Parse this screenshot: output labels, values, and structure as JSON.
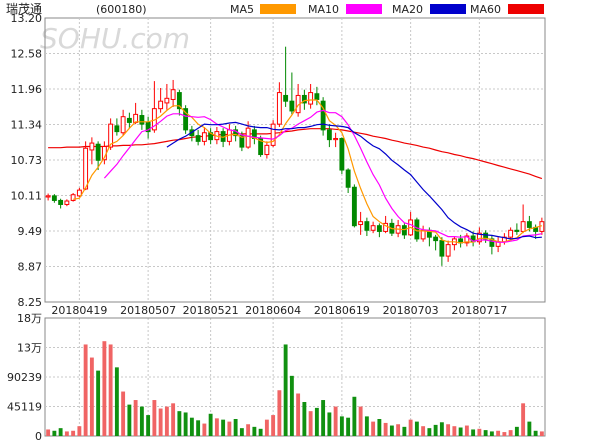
{
  "chart_data": {
    "type": "candlestick",
    "title": "瑞茂通",
    "code": "(600180)",
    "watermark": "SOHU.com",
    "ma_legend": [
      {
        "name": "MA5",
        "color": "#ff9900"
      },
      {
        "name": "MA10",
        "color": "#ff00ff"
      },
      {
        "name": "MA20",
        "color": "#0000cc"
      },
      {
        "name": "MA60",
        "color": "#ee0000"
      }
    ],
    "colors": {
      "up": "#ff0000",
      "down": "#008800",
      "grid": "#c8c8c8",
      "text": "#222222",
      "volume_up": "#f06464",
      "volume_down": "#109010"
    },
    "price_axis": {
      "ticks": [
        "13.20",
        "12.58",
        "11.96",
        "11.34",
        "10.73",
        "10.11",
        "9.49",
        "8.87",
        "8.25"
      ],
      "ylim": [
        8.25,
        13.2
      ]
    },
    "volume_axis": {
      "ticks": [
        "18万",
        "13万",
        "90239",
        "45119",
        "0"
      ],
      "ylim": [
        0,
        180478
      ]
    },
    "x_labels": [
      "20180419",
      "20180507",
      "20180521",
      "20180604",
      "20180619",
      "20180703",
      "20180717"
    ],
    "x_label_index": [
      5,
      16,
      26,
      36,
      47,
      58,
      69
    ],
    "candles": [
      [
        10.08,
        10.1,
        10.14,
        10.02
      ],
      [
        10.1,
        10.02,
        10.13,
        9.98
      ],
      [
        10.02,
        9.95,
        10.05,
        9.88
      ],
      [
        9.95,
        10.01,
        10.04,
        9.92
      ],
      [
        10.02,
        10.12,
        10.15,
        10.0
      ],
      [
        10.1,
        10.2,
        10.24,
        10.08
      ],
      [
        10.22,
        10.93,
        11.05,
        10.2
      ],
      [
        10.9,
        11.02,
        11.12,
        10.65
      ],
      [
        11.0,
        10.72,
        11.05,
        10.55
      ],
      [
        10.73,
        10.96,
        11.05,
        10.65
      ],
      [
        10.95,
        11.35,
        11.45,
        10.9
      ],
      [
        11.32,
        11.22,
        11.45,
        11.15
      ],
      [
        11.2,
        11.48,
        11.6,
        11.15
      ],
      [
        11.45,
        11.38,
        11.55,
        11.28
      ],
      [
        11.38,
        11.52,
        11.72,
        11.35
      ],
      [
        11.5,
        11.35,
        11.6,
        11.25
      ],
      [
        11.38,
        11.22,
        11.48,
        11.1
      ],
      [
        11.25,
        11.62,
        12.1,
        11.2
      ],
      [
        11.62,
        11.75,
        11.98,
        11.55
      ],
      [
        11.72,
        11.8,
        12.05,
        11.6
      ],
      [
        11.78,
        11.95,
        12.12,
        11.65
      ],
      [
        11.9,
        11.62,
        11.95,
        11.5
      ],
      [
        11.62,
        11.25,
        11.68,
        11.18
      ],
      [
        11.25,
        11.15,
        11.32,
        11.05
      ],
      [
        11.15,
        11.05,
        11.25,
        10.98
      ],
      [
        11.05,
        11.2,
        11.3,
        10.98
      ],
      [
        11.2,
        11.08,
        11.28,
        11.0
      ],
      [
        11.08,
        11.22,
        11.3,
        11.0
      ],
      [
        11.22,
        11.05,
        11.28,
        10.95
      ],
      [
        11.05,
        11.25,
        11.35,
        10.98
      ],
      [
        11.25,
        11.15,
        11.32,
        11.05
      ],
      [
        11.15,
        10.95,
        11.22,
        10.88
      ],
      [
        10.95,
        11.28,
        11.4,
        10.92
      ],
      [
        11.25,
        11.1,
        11.32,
        11.0
      ],
      [
        11.1,
        10.82,
        11.15,
        10.78
      ],
      [
        10.82,
        10.98,
        11.05,
        10.75
      ],
      [
        10.98,
        11.35,
        11.42,
        10.95
      ],
      [
        11.35,
        11.9,
        12.08,
        11.3
      ],
      [
        11.85,
        11.75,
        12.7,
        11.65
      ],
      [
        11.75,
        11.58,
        12.25,
        11.52
      ],
      [
        11.55,
        11.85,
        12.05,
        11.48
      ],
      [
        11.85,
        11.72,
        11.95,
        11.6
      ],
      [
        11.7,
        11.9,
        12.05,
        11.62
      ],
      [
        11.88,
        11.78,
        12.0,
        11.68
      ],
      [
        11.75,
        11.25,
        11.82,
        11.15
      ],
      [
        11.25,
        11.08,
        11.35,
        10.95
      ],
      [
        11.08,
        11.1,
        11.2,
        10.95
      ],
      [
        11.1,
        10.55,
        11.12,
        10.48
      ],
      [
        10.55,
        10.25,
        10.58,
        10.15
      ],
      [
        10.25,
        9.58,
        10.3,
        9.55
      ],
      [
        9.6,
        9.65,
        9.82,
        9.42
      ],
      [
        9.65,
        9.5,
        9.72,
        9.4
      ],
      [
        9.5,
        9.58,
        9.65,
        9.45
      ],
      [
        9.58,
        9.48,
        9.62,
        9.38
      ],
      [
        9.48,
        9.62,
        9.75,
        9.45
      ],
      [
        9.62,
        9.45,
        9.7,
        9.4
      ],
      [
        9.45,
        9.58,
        9.68,
        9.38
      ],
      [
        9.58,
        9.42,
        9.62,
        9.35
      ],
      [
        9.42,
        9.68,
        9.82,
        9.4
      ],
      [
        9.68,
        9.35,
        9.72,
        9.3
      ],
      [
        9.35,
        9.5,
        9.58,
        9.3
      ],
      [
        9.5,
        9.38,
        9.55,
        9.22
      ],
      [
        9.38,
        9.32,
        9.42,
        9.15
      ],
      [
        9.32,
        9.05,
        9.38,
        8.88
      ],
      [
        9.05,
        9.25,
        9.32,
        8.95
      ],
      [
        9.25,
        9.35,
        9.4,
        9.15
      ],
      [
        9.35,
        9.28,
        9.42,
        9.2
      ],
      [
        9.28,
        9.4,
        9.45,
        9.22
      ],
      [
        9.4,
        9.3,
        9.48,
        9.22
      ],
      [
        9.3,
        9.45,
        9.55,
        9.25
      ],
      [
        9.45,
        9.35,
        9.5,
        9.28
      ],
      [
        9.35,
        9.22,
        9.4,
        9.08
      ],
      [
        9.22,
        9.3,
        9.38,
        9.12
      ],
      [
        9.3,
        9.38,
        9.45,
        9.25
      ],
      [
        9.38,
        9.5,
        9.55,
        9.32
      ],
      [
        9.5,
        9.48,
        9.62,
        9.42
      ],
      [
        9.48,
        9.65,
        9.95,
        9.45
      ],
      [
        9.65,
        9.55,
        9.75,
        9.48
      ],
      [
        9.55,
        9.48,
        9.6,
        9.35
      ],
      [
        9.48,
        9.65,
        9.72,
        9.42
      ]
    ],
    "volume": [
      10000,
      8000,
      12000,
      7000,
      8000,
      15000,
      140000,
      120000,
      100000,
      145000,
      140000,
      105000,
      68000,
      48000,
      55000,
      45000,
      32000,
      55000,
      42000,
      45000,
      50000,
      38000,
      36000,
      28000,
      24000,
      19000,
      34000,
      27000,
      25000,
      22000,
      26000,
      12000,
      18000,
      14000,
      11000,
      25000,
      32000,
      70000,
      140000,
      92000,
      65000,
      52000,
      38000,
      43000,
      55000,
      36000,
      45000,
      30000,
      28000,
      60000,
      45000,
      30000,
      22000,
      26000,
      20000,
      16000,
      18000,
      14000,
      25000,
      22000,
      15000,
      12000,
      17000,
      21000,
      18000,
      15000,
      13000,
      16000,
      10000,
      11000,
      9000,
      7000,
      8000,
      6000,
      9000,
      14000,
      50000,
      22000,
      8000,
      7000
    ],
    "ma_series": [
      {
        "name": "MA5",
        "color": "#ff9900",
        "values": [
          null,
          null,
          null,
          null,
          10.04,
          10.06,
          10.24,
          10.46,
          10.6,
          10.77,
          11.0,
          11.05,
          11.15,
          11.28,
          11.39,
          11.39,
          11.39,
          11.42,
          11.49,
          11.59,
          11.67,
          11.67,
          11.55,
          11.47,
          11.35,
          11.29,
          11.19,
          11.14,
          11.12,
          11.16,
          11.17,
          11.12,
          11.14,
          11.11,
          11.06,
          11.03,
          11.05,
          11.17,
          11.36,
          11.51,
          11.68,
          11.76,
          11.77,
          11.77,
          11.63,
          11.41,
          11.33,
          11.2,
          10.92,
          10.53,
          10.23,
          9.96,
          9.74,
          9.65,
          9.58,
          9.53,
          9.52,
          9.51,
          9.55,
          9.49,
          9.49,
          9.48,
          9.47,
          9.33,
          9.3,
          9.3,
          9.28,
          9.3,
          9.29,
          9.36,
          9.36,
          9.34,
          9.3,
          9.3,
          9.33,
          9.37,
          9.47,
          9.52,
          9.55,
          9.58
        ]
      },
      {
        "name": "MA10",
        "color": "#ff00ff",
        "values": [
          null,
          null,
          null,
          null,
          null,
          null,
          null,
          null,
          null,
          10.41,
          10.53,
          10.65,
          10.8,
          10.94,
          11.08,
          11.22,
          11.25,
          11.32,
          11.4,
          11.49,
          11.53,
          11.53,
          11.49,
          11.48,
          11.47,
          11.48,
          11.43,
          11.35,
          11.3,
          11.25,
          11.23,
          11.16,
          11.14,
          11.12,
          11.11,
          11.1,
          11.09,
          11.15,
          11.24,
          11.28,
          11.35,
          11.41,
          11.47,
          11.56,
          11.59,
          11.55,
          11.55,
          11.48,
          11.34,
          11.15,
          10.93,
          10.69,
          10.47,
          10.29,
          10.06,
          9.88,
          9.74,
          9.63,
          9.6,
          9.54,
          9.51,
          9.5,
          9.49,
          9.44,
          9.39,
          9.39,
          9.38,
          9.39,
          9.31,
          9.33,
          9.33,
          9.31,
          9.29,
          9.29,
          9.31,
          9.33,
          9.4,
          9.41,
          9.42,
          9.44
        ]
      },
      {
        "name": "MA20",
        "color": "#0000cc",
        "values": [
          null,
          null,
          null,
          null,
          null,
          null,
          null,
          null,
          null,
          null,
          null,
          null,
          null,
          null,
          null,
          null,
          null,
          null,
          null,
          10.95,
          11.02,
          11.09,
          11.14,
          11.21,
          11.28,
          11.35,
          11.34,
          11.34,
          11.35,
          11.37,
          11.38,
          11.35,
          11.32,
          11.3,
          11.29,
          11.29,
          11.26,
          11.25,
          11.27,
          11.27,
          11.29,
          11.29,
          11.31,
          11.34,
          11.35,
          11.33,
          11.32,
          11.31,
          11.29,
          11.2,
          11.14,
          11.05,
          10.97,
          10.92,
          10.83,
          10.72,
          10.64,
          10.55,
          10.47,
          10.34,
          10.21,
          10.1,
          9.98,
          9.86,
          9.72,
          9.63,
          9.56,
          9.51,
          9.45,
          9.43,
          9.42,
          9.41,
          9.39,
          9.37,
          9.35,
          9.36,
          9.39,
          9.4,
          9.37,
          9.38
        ]
      },
      {
        "name": "MA60",
        "color": "#ee0000",
        "values": [
          10.94,
          10.94,
          10.94,
          10.95,
          10.95,
          10.95,
          10.96,
          10.96,
          10.96,
          10.96,
          10.97,
          10.97,
          10.98,
          10.98,
          10.99,
          10.99,
          11.0,
          11.01,
          11.03,
          11.05,
          11.07,
          11.08,
          11.1,
          11.12,
          11.13,
          11.14,
          11.15,
          11.16,
          11.17,
          11.17,
          11.18,
          11.18,
          11.18,
          11.18,
          11.18,
          11.18,
          11.19,
          11.2,
          11.22,
          11.23,
          11.25,
          11.26,
          11.27,
          11.27,
          11.27,
          11.27,
          11.26,
          11.25,
          11.23,
          11.21,
          11.19,
          11.17,
          11.14,
          11.12,
          11.1,
          11.07,
          11.05,
          11.02,
          11.0,
          10.98,
          10.95,
          10.93,
          10.9,
          10.87,
          10.85,
          10.82,
          10.8,
          10.77,
          10.75,
          10.72,
          10.69,
          10.66,
          10.63,
          10.6,
          10.57,
          10.54,
          10.51,
          10.48,
          10.44,
          10.4
        ]
      }
    ]
  }
}
